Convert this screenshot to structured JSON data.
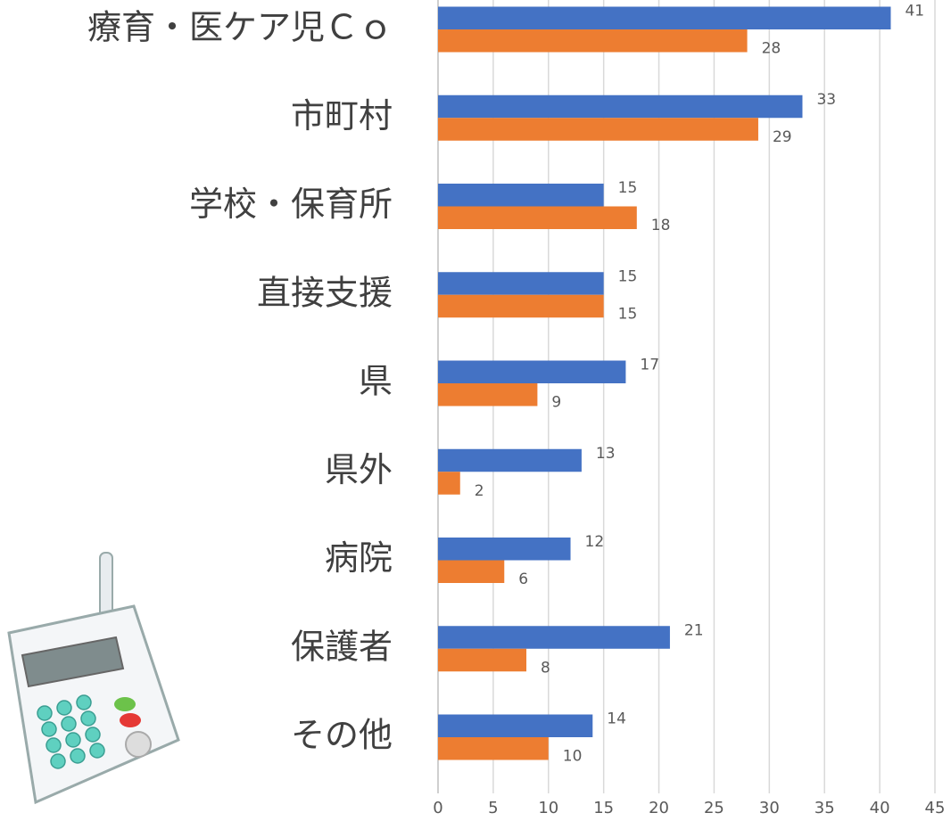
{
  "chart_data": {
    "type": "bar",
    "orientation": "horizontal",
    "categories": [
      "療育・医ケア児Ｃｏ",
      "市町村",
      "学校・保育所",
      "直接支援",
      "県",
      "県外",
      "病院",
      "保護者",
      "その他"
    ],
    "series": [
      {
        "color": "#4472c4",
        "values": [
          41,
          33,
          15,
          15,
          17,
          13,
          12,
          21,
          14
        ]
      },
      {
        "color": "#ed7d31",
        "values": [
          28,
          29,
          18,
          15,
          9,
          2,
          6,
          8,
          10
        ]
      }
    ],
    "xlim": [
      0,
      45
    ],
    "xticks": [
      0,
      5,
      10,
      15,
      20,
      25,
      30,
      35,
      40,
      45
    ],
    "grid": true,
    "data_labels": true
  }
}
